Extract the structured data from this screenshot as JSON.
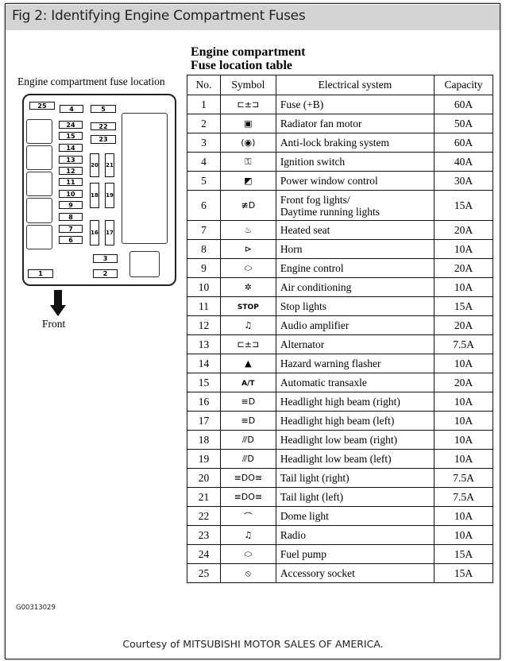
{
  "header": {
    "title": "Fig 2: Identifying Engine Compartment Fuses"
  },
  "location_diagram": {
    "caption": "Engine compartment fuse location",
    "front_label": "Front",
    "fuses": [
      "1",
      "2",
      "3",
      "4",
      "5",
      "6",
      "7",
      "8",
      "9",
      "10",
      "11",
      "12",
      "13",
      "14",
      "15",
      "16",
      "17",
      "18",
      "19",
      "20",
      "21",
      "22",
      "23",
      "24",
      "25"
    ]
  },
  "table": {
    "title_line1": "Engine compartment",
    "title_line2": "Fuse location table",
    "headers": [
      "No.",
      "Symbol",
      "Electrical system",
      "Capacity"
    ],
    "rows": [
      {
        "no": "1",
        "symbol": "battery-icon",
        "system": "Fuse (+B)",
        "capacity": "60A"
      },
      {
        "no": "2",
        "symbol": "radiator-fan-icon",
        "system": "Radiator fan motor",
        "capacity": "50A"
      },
      {
        "no": "3",
        "symbol": "abs-icon",
        "system": "Anti-lock braking system",
        "capacity": "60A"
      },
      {
        "no": "4",
        "symbol": "ignition-key-icon",
        "system": "Ignition switch",
        "capacity": "40A"
      },
      {
        "no": "5",
        "symbol": "power-window-icon",
        "system": "Power window control",
        "capacity": "30A"
      },
      {
        "no": "6",
        "symbol": "fog-light-icon",
        "system": "Front fog lights/",
        "system2": "Daytime running lights",
        "capacity": "15A"
      },
      {
        "no": "7",
        "symbol": "heated-seat-icon",
        "system": "Heated seat",
        "capacity": "20A"
      },
      {
        "no": "8",
        "symbol": "horn-icon",
        "system": "Horn",
        "capacity": "10A"
      },
      {
        "no": "9",
        "symbol": "engine-icon",
        "system": "Engine control",
        "capacity": "20A"
      },
      {
        "no": "10",
        "symbol": "air-conditioning-icon",
        "system": "Air conditioning",
        "capacity": "10A"
      },
      {
        "no": "11",
        "symbol": "stop-icon",
        "symbol_text": "STOP",
        "system": "Stop lights",
        "capacity": "15A"
      },
      {
        "no": "12",
        "symbol": "music-note-icon",
        "system": "Audio amplifier",
        "capacity": "20A"
      },
      {
        "no": "13",
        "symbol": "battery-icon",
        "system": "Alternator",
        "capacity": "7.5A"
      },
      {
        "no": "14",
        "symbol": "hazard-icon",
        "system": "Hazard warning flasher",
        "capacity": "10A"
      },
      {
        "no": "15",
        "symbol": "at-icon",
        "symbol_text": "A/T",
        "system": "Automatic transaxle",
        "capacity": "20A"
      },
      {
        "no": "16",
        "symbol": "high-beam-icon",
        "system": "Headlight high beam (right)",
        "capacity": "10A"
      },
      {
        "no": "17",
        "symbol": "high-beam-icon",
        "system": "Headlight high beam (left)",
        "capacity": "10A"
      },
      {
        "no": "18",
        "symbol": "low-beam-icon",
        "system": "Headlight low beam (right)",
        "capacity": "10A"
      },
      {
        "no": "19",
        "symbol": "low-beam-icon",
        "system": "Headlight low beam (left)",
        "capacity": "10A"
      },
      {
        "no": "20",
        "symbol": "tail-light-icon",
        "system": "Tail light (right)",
        "capacity": "7.5A"
      },
      {
        "no": "21",
        "symbol": "tail-light-icon",
        "system": "Tail light (left)",
        "capacity": "7.5A"
      },
      {
        "no": "22",
        "symbol": "dome-light-icon",
        "system": "Dome light",
        "capacity": "10A"
      },
      {
        "no": "23",
        "symbol": "music-note-icon",
        "system": "Radio",
        "capacity": "10A"
      },
      {
        "no": "24",
        "symbol": "engine-icon",
        "system": "Fuel pump",
        "capacity": "15A"
      },
      {
        "no": "25",
        "symbol": "socket-icon",
        "system": "Accessory socket",
        "capacity": "15A"
      }
    ]
  },
  "figure_code": "G00313029",
  "courtesy": "Courtesy of MITSUBISHI MOTOR SALES OF AMERICA."
}
